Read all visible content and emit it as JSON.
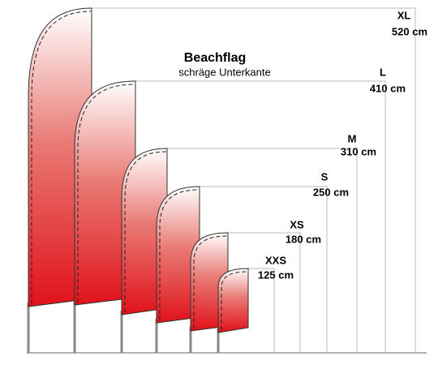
{
  "title": "Beachflag",
  "subtitle": "schräge Unterkante",
  "flags": [
    {
      "size": "XL",
      "height": "520 cm"
    },
    {
      "size": "L",
      "height": "410 cm"
    },
    {
      "size": "M",
      "height": "310 cm"
    },
    {
      "size": "S",
      "height": "250 cm"
    },
    {
      "size": "XS",
      "height": "180 cm"
    },
    {
      "size": "XXS",
      "height": "125 cm"
    }
  ]
}
